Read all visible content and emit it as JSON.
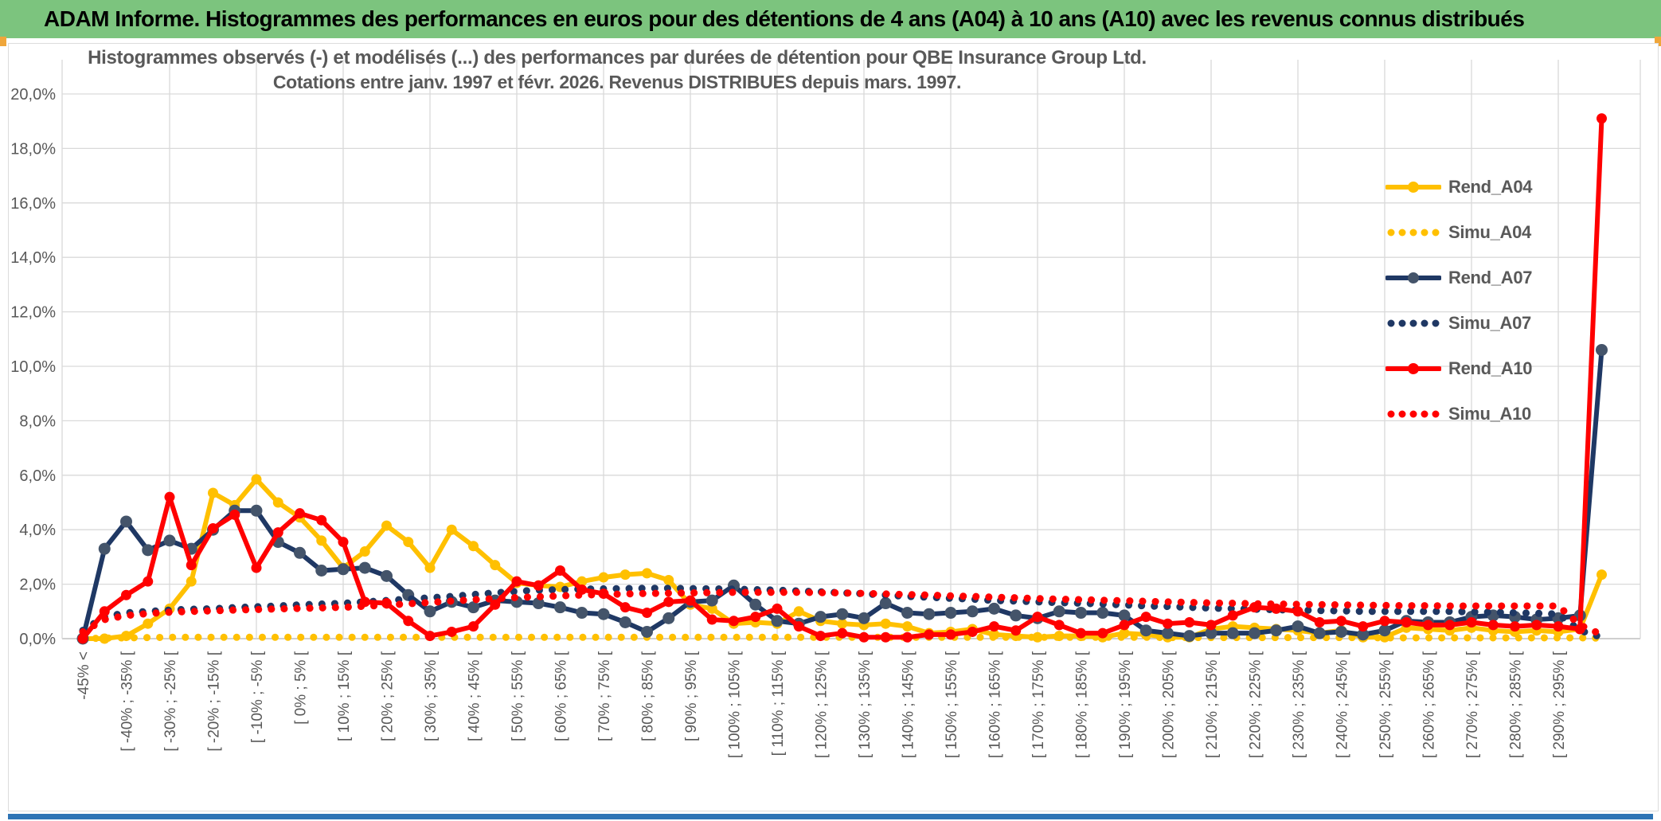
{
  "header": {
    "title": "ADAM Informe. Histogrammes des performances en euros pour des détentions de 4 ans (A04) à 10 ans (A10) avec les revenus connus distribués"
  },
  "colors": {
    "header_bg": "#7CC47E",
    "accent_gold": "#EFA63B",
    "bottom_bar": "#2E74B5",
    "grid": "#D9D9D9",
    "axis_line": "#BFBFBF",
    "title_text": "#595959",
    "axis_text": "#595959"
  },
  "chart_data": {
    "type": "line",
    "title": "Histogrammes observés (-) et modélisés (...) des performances par durées de détention pour QBE Insurance Group Ltd.",
    "subtitle": "Cotations entre janv. 1997 et févr. 2026. Revenus DISTRIBUES depuis mars. 1997.",
    "xlabel": "",
    "ylabel": "",
    "ylim": [
      0,
      20
    ],
    "y_tick_step_pct": 2,
    "grid": "on",
    "legend_position": "right-inside",
    "y_ticks": [
      "0,0%",
      "2,0%",
      "4,0%",
      "6,0%",
      "8,0%",
      "10,0%",
      "12,0%",
      "14,0%",
      "16,0%",
      "18,0%",
      "20,0%"
    ],
    "categories": [
      "-45% <",
      "",
      "[ -40% ; -35% [",
      "",
      "[ -30% ; -25% [",
      "",
      "[ -20% ; -15% [",
      "",
      "[ -10% ; -5% [",
      "",
      "[ 0% ; 5% [",
      "",
      "[ 10% ; 15% [",
      "",
      "[ 20% ; 25% [",
      "",
      "[ 30% ; 35% [",
      "",
      "[ 40% ; 45% [",
      "",
      "[ 50% ; 55% [",
      "",
      "[ 60% ; 65% [",
      "",
      "[ 70% ; 75% [",
      "",
      "[ 80% ; 85% [",
      "",
      "[ 90% ; 95% [",
      "",
      "[ 100% ; 105% [",
      "",
      "[ 110% ; 115% [",
      "",
      "[ 120% ; 125% [",
      "",
      "[ 130% ; 135% [",
      "",
      "[ 140% ; 145% [",
      "",
      "[ 150% ; 155% [",
      "",
      "[ 160% ; 165% [",
      "",
      "[ 170% ; 175% [",
      "",
      "[ 180% ; 185% [",
      "",
      "[ 190% ; 195% [",
      "",
      "[ 200% ; 205% [",
      "",
      "[ 210% ; 215% [",
      "",
      "[ 220% ; 225% [",
      "",
      "[ 230% ; 235% [",
      "",
      "[ 240% ; 245% [",
      "",
      "[ 250% ; 255% [",
      "",
      "[ 260% ; 265% [",
      "",
      "[ 270% ; 275% [",
      "",
      "[ 280% ; 285% [",
      "",
      "[ 290% ; 295% [",
      "",
      ""
    ],
    "series": [
      {
        "name": "Rend_A04",
        "style": "solid",
        "color": "#FFC000",
        "marker_color": "#FFC000",
        "values": [
          0,
          0,
          0.1,
          0.55,
          1.1,
          2.1,
          5.35,
          4.9,
          5.85,
          5.0,
          4.45,
          3.6,
          2.6,
          3.2,
          4.15,
          3.55,
          2.6,
          4.0,
          3.4,
          2.7,
          2.05,
          1.95,
          1.9,
          2.1,
          2.25,
          2.35,
          2.4,
          2.15,
          1.25,
          1.1,
          0.55,
          0.6,
          0.55,
          1.0,
          0.65,
          0.55,
          0.5,
          0.55,
          0.45,
          0.2,
          0.25,
          0.35,
          0.15,
          0.1,
          0.05,
          0.1,
          0.1,
          0.05,
          0.2,
          0.15,
          0.05,
          0.05,
          0.35,
          0.45,
          0.4,
          0.35,
          0.3,
          0.2,
          0.3,
          0.05,
          0.05,
          0.4,
          0.35,
          0.3,
          0.4,
          0.3,
          0.25,
          0.3,
          0.25,
          0.35,
          2.35
        ]
      },
      {
        "name": "Simu_A04",
        "style": "dotted",
        "color": "#FFC000",
        "values": [
          0,
          0.02,
          0.03,
          0.04,
          0.05,
          0.05,
          0.05,
          0.05,
          0.05,
          0.05,
          0.05,
          0.05,
          0.05,
          0.05,
          0.05,
          0.05,
          0.05,
          0.05,
          0.05,
          0.05,
          0.05,
          0.05,
          0.05,
          0.05,
          0.05,
          0.05,
          0.05,
          0.05,
          0.05,
          0.05,
          0.05,
          0.05,
          0.05,
          0.05,
          0.05,
          0.05,
          0.05,
          0.05,
          0.05,
          0.05,
          0.05,
          0.05,
          0.05,
          0.05,
          0.05,
          0.05,
          0.05,
          0.05,
          0.05,
          0.05,
          0.04,
          0.04,
          0.04,
          0.04,
          0.04,
          0.04,
          0.04,
          0.04,
          0.04,
          0.04,
          0.03,
          0.03,
          0.03,
          0.03,
          0.03,
          0.03,
          0.03,
          0.03,
          0.03,
          0.03,
          0.02
        ]
      },
      {
        "name": "Rend_A07",
        "style": "solid",
        "color": "#1F3864",
        "marker_color": "#44546A",
        "values": [
          0,
          3.3,
          4.3,
          3.25,
          3.6,
          3.3,
          4.0,
          4.7,
          4.7,
          3.55,
          3.15,
          2.5,
          2.55,
          2.6,
          2.3,
          1.6,
          1.0,
          1.35,
          1.15,
          1.4,
          1.35,
          1.3,
          1.15,
          0.95,
          0.9,
          0.6,
          0.25,
          0.75,
          1.35,
          1.4,
          1.95,
          1.25,
          0.65,
          0.55,
          0.8,
          0.9,
          0.75,
          1.3,
          0.95,
          0.9,
          0.95,
          1.0,
          1.1,
          0.85,
          0.75,
          1.0,
          0.95,
          0.95,
          0.85,
          0.3,
          0.2,
          0.1,
          0.2,
          0.2,
          0.2,
          0.3,
          0.45,
          0.2,
          0.25,
          0.15,
          0.3,
          0.65,
          0.6,
          0.6,
          0.8,
          0.85,
          0.8,
          0.7,
          0.75,
          0.85,
          10.6
        ]
      },
      {
        "name": "Simu_A07",
        "style": "dotted",
        "color": "#1F3864",
        "values": [
          0.3,
          0.8,
          0.95,
          1.0,
          1.05,
          1.08,
          1.1,
          1.14,
          1.17,
          1.2,
          1.24,
          1.27,
          1.3,
          1.35,
          1.4,
          1.45,
          1.5,
          1.55,
          1.62,
          1.68,
          1.74,
          1.78,
          1.8,
          1.82,
          1.83,
          1.84,
          1.85,
          1.85,
          1.84,
          1.83,
          1.82,
          1.8,
          1.78,
          1.75,
          1.72,
          1.68,
          1.65,
          1.6,
          1.55,
          1.52,
          1.48,
          1.45,
          1.4,
          1.38,
          1.35,
          1.32,
          1.3,
          1.27,
          1.24,
          1.2,
          1.18,
          1.15,
          1.12,
          1.1,
          1.08,
          1.06,
          1.05,
          1.03,
          1.02,
          1.0,
          1.0,
          1.0,
          1.0,
          1.0,
          0.98,
          0.97,
          0.95,
          0.93,
          0.9,
          0.3,
          0.05
        ]
      },
      {
        "name": "Rend_A10",
        "style": "solid",
        "color": "#FF0000",
        "marker_color": "#FF0000",
        "values": [
          0,
          1.0,
          1.6,
          2.1,
          5.2,
          2.7,
          4.05,
          4.55,
          2.6,
          3.9,
          4.6,
          4.35,
          3.55,
          1.35,
          1.3,
          0.65,
          0.1,
          0.25,
          0.45,
          1.25,
          2.1,
          1.95,
          2.5,
          1.8,
          1.65,
          1.15,
          0.95,
          1.35,
          1.4,
          0.7,
          0.65,
          0.8,
          1.1,
          0.45,
          0.1,
          0.2,
          0.05,
          0.05,
          0.05,
          0.15,
          0.15,
          0.25,
          0.45,
          0.3,
          0.8,
          0.5,
          0.2,
          0.2,
          0.5,
          0.8,
          0.55,
          0.6,
          0.5,
          0.85,
          1.15,
          1.1,
          1.0,
          0.6,
          0.65,
          0.45,
          0.65,
          0.6,
          0.5,
          0.5,
          0.6,
          0.5,
          0.45,
          0.5,
          0.45,
          0.35,
          19.1
        ]
      },
      {
        "name": "Simu_A10",
        "style": "dotted",
        "color": "#FF0000",
        "values": [
          0.25,
          0.7,
          0.85,
          0.92,
          0.97,
          1.0,
          1.02,
          1.05,
          1.07,
          1.09,
          1.11,
          1.13,
          1.15,
          1.19,
          1.23,
          1.28,
          1.33,
          1.38,
          1.43,
          1.47,
          1.51,
          1.54,
          1.57,
          1.6,
          1.62,
          1.64,
          1.66,
          1.67,
          1.68,
          1.69,
          1.7,
          1.7,
          1.7,
          1.7,
          1.69,
          1.68,
          1.66,
          1.64,
          1.62,
          1.6,
          1.57,
          1.55,
          1.52,
          1.5,
          1.47,
          1.45,
          1.43,
          1.41,
          1.39,
          1.37,
          1.35,
          1.33,
          1.31,
          1.3,
          1.28,
          1.27,
          1.26,
          1.25,
          1.24,
          1.23,
          1.22,
          1.21,
          1.21,
          1.2,
          1.2,
          1.2,
          1.2,
          1.2,
          1.2,
          0.5,
          0.15
        ]
      }
    ]
  }
}
